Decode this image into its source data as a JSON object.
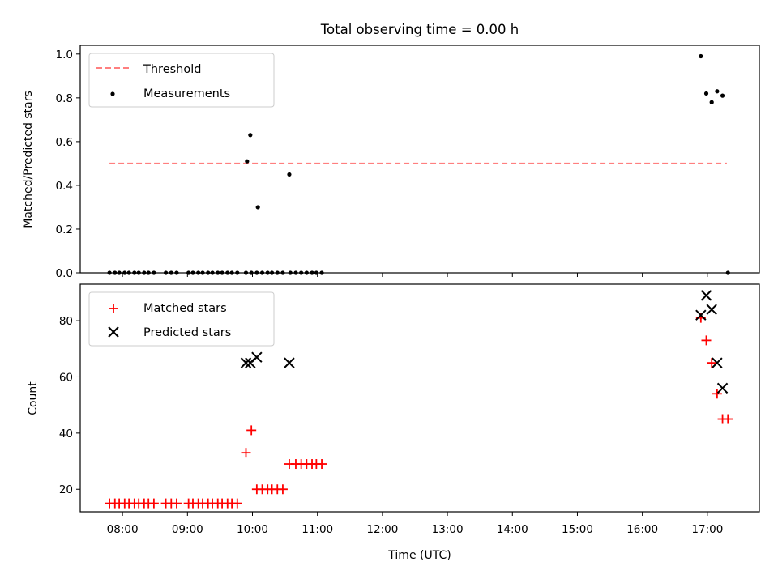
{
  "title": "Total observing time = 0.00 h",
  "chart_data": [
    {
      "type": "scatter",
      "ylabel": "Matched/Predicted stars",
      "xlim_hours": [
        7.35,
        17.8
      ],
      "ylim": [
        0,
        1.04
      ],
      "yticks": [
        "0.0",
        "0.2",
        "0.4",
        "0.6",
        "0.8",
        "1.0"
      ],
      "legend_position": "upper-left",
      "threshold": {
        "name": "Threshold",
        "y": 0.5,
        "x_start": "07:48",
        "x_end": "17:18",
        "color": "#ff7f7f",
        "style": "dashed"
      },
      "series": [
        {
          "name": "Measurements",
          "color": "#000000",
          "x": [
            "07:48",
            "07:53",
            "07:57",
            "08:02",
            "08:06",
            "08:11",
            "08:15",
            "08:20",
            "08:24",
            "08:29",
            "08:40",
            "08:45",
            "08:50",
            "09:01",
            "09:05",
            "09:10",
            "09:14",
            "09:19",
            "09:23",
            "09:28",
            "09:32",
            "09:37",
            "09:41",
            "09:46",
            "09:54",
            "09:59",
            "10:04",
            "10:09",
            "10:14",
            "10:18",
            "10:23",
            "10:28",
            "10:35",
            "10:40",
            "10:45",
            "10:50",
            "10:55",
            "10:59",
            "11:04",
            "09:55",
            "09:58",
            "10:05",
            "10:34",
            "16:54",
            "16:59",
            "17:04",
            "17:09",
            "17:14",
            "17:19"
          ],
          "y": [
            0,
            0,
            0,
            0,
            0,
            0,
            0,
            0,
            0,
            0,
            0,
            0,
            0,
            0,
            0,
            0,
            0,
            0,
            0,
            0,
            0,
            0,
            0,
            0,
            0,
            0,
            0,
            0,
            0,
            0,
            0,
            0,
            0,
            0,
            0,
            0,
            0,
            0,
            0,
            0.51,
            0.63,
            0.3,
            0.45,
            0.99,
            0.82,
            0.78,
            0.83,
            0.81,
            0
          ]
        }
      ]
    },
    {
      "type": "scatter",
      "xlabel": "Time (UTC)",
      "ylabel": "Count",
      "xlim_hours": [
        7.35,
        17.8
      ],
      "ylim": [
        12,
        93
      ],
      "yticks": [
        "20",
        "40",
        "60",
        "80"
      ],
      "xticks": [
        "08:00",
        "09:00",
        "10:00",
        "11:00",
        "12:00",
        "13:00",
        "14:00",
        "15:00",
        "16:00",
        "17:00"
      ],
      "legend_position": "upper-left",
      "series": [
        {
          "name": "Matched stars",
          "color": "#ff0000",
          "marker": "plus",
          "x": [
            "07:48",
            "07:53",
            "07:57",
            "08:02",
            "08:06",
            "08:11",
            "08:15",
            "08:20",
            "08:24",
            "08:29",
            "08:40",
            "08:45",
            "08:50",
            "09:01",
            "09:05",
            "09:10",
            "09:14",
            "09:19",
            "09:23",
            "09:28",
            "09:32",
            "09:37",
            "09:41",
            "09:46",
            "09:54",
            "09:59",
            "10:04",
            "10:09",
            "10:14",
            "10:18",
            "10:23",
            "10:28",
            "10:34",
            "10:40",
            "10:45",
            "10:50",
            "10:55",
            "10:59",
            "11:04",
            "16:54",
            "16:59",
            "17:04",
            "17:09",
            "17:14",
            "17:19"
          ],
          "y": [
            15,
            15,
            15,
            15,
            15,
            15,
            15,
            15,
            15,
            15,
            15,
            15,
            15,
            15,
            15,
            15,
            15,
            15,
            15,
            15,
            15,
            15,
            15,
            15,
            33,
            41,
            20,
            20,
            20,
            20,
            20,
            20,
            29,
            29,
            29,
            29,
            29,
            29,
            29,
            81,
            73,
            65,
            54,
            45,
            45
          ]
        },
        {
          "name": "Predicted stars",
          "color": "#000000",
          "marker": "x",
          "x": [
            "09:54",
            "09:58",
            "10:04",
            "10:34",
            "16:54",
            "16:59",
            "17:04",
            "17:09",
            "17:14"
          ],
          "y": [
            65,
            65,
            67,
            65,
            82,
            89,
            84,
            65,
            56
          ]
        }
      ]
    }
  ]
}
